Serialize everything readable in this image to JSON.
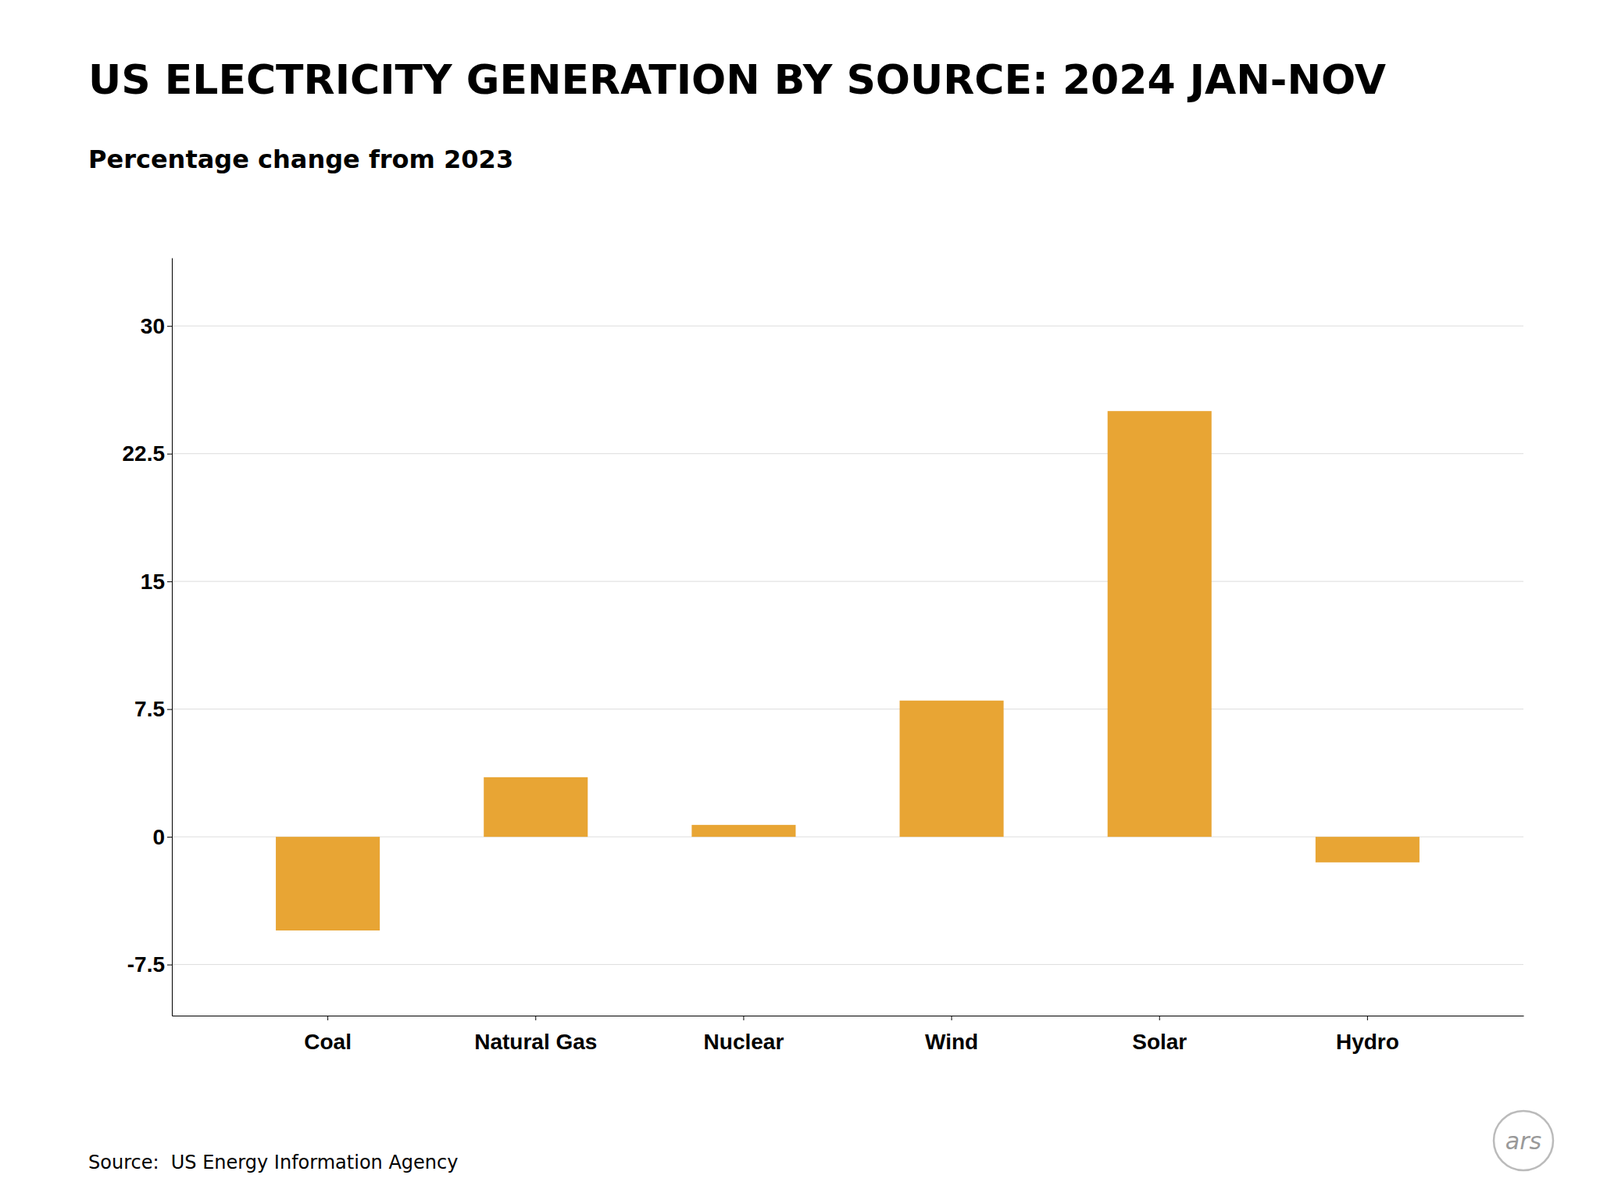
{
  "chart_data": {
    "type": "bar",
    "title": "US ELECTRICITY GENERATION BY SOURCE: 2024 JAN-NOV",
    "subtitle": "Percentage change from 2023",
    "annotations": [
      "Source:  US Energy Information Agency",
      "ars"
    ],
    "categories": [
      "Coal",
      "Natural Gas",
      "Nuclear",
      "Wind",
      "Solar",
      "Hydro"
    ],
    "values": [
      -5.5,
      3.5,
      0.7,
      8.0,
      25.0,
      -1.5
    ],
    "color": "#E8A534",
    "ylim": [
      -10.5,
      34
    ],
    "yticks": [
      -7.5,
      0,
      7.5,
      15,
      22.5,
      30
    ],
    "grid": true
  }
}
